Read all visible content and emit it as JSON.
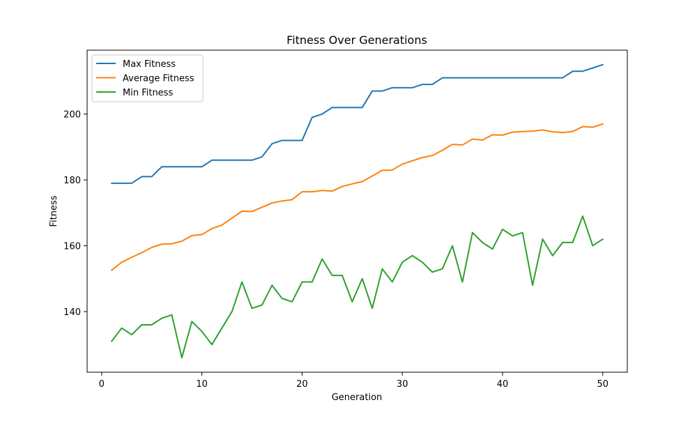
{
  "chart_data": {
    "type": "line",
    "title": "Fitness Over Generations",
    "xlabel": "Generation",
    "ylabel": "Fitness",
    "xlim": [
      -1.45,
      52.45
    ],
    "ylim": [
      121.6,
      219.4
    ],
    "xticks": [
      0,
      10,
      20,
      30,
      40,
      50
    ],
    "yticks": [
      140,
      160,
      180,
      200
    ],
    "grid": false,
    "legend_position": "top-left",
    "x": [
      1,
      2,
      3,
      4,
      5,
      6,
      7,
      8,
      9,
      10,
      11,
      12,
      13,
      14,
      15,
      16,
      17,
      18,
      19,
      20,
      21,
      22,
      23,
      24,
      25,
      26,
      27,
      28,
      29,
      30,
      31,
      32,
      33,
      34,
      35,
      36,
      37,
      38,
      39,
      40,
      41,
      42,
      43,
      44,
      45,
      46,
      47,
      48,
      49,
      50
    ],
    "series": [
      {
        "name": "Max Fitness",
        "color": "#1f77b4",
        "values": [
          179,
          179,
          179,
          181,
          181,
          184,
          184,
          184,
          184,
          184,
          186,
          186,
          186,
          186,
          186,
          187,
          191,
          192,
          192,
          192,
          199,
          200,
          202,
          202,
          202,
          202,
          207,
          207,
          208,
          208,
          208,
          209,
          209,
          211,
          211,
          211,
          211,
          211,
          211,
          211,
          211,
          211,
          211,
          211,
          211,
          211,
          213,
          213,
          214,
          215
        ]
      },
      {
        "name": "Average Fitness",
        "color": "#ff7f0e",
        "values": [
          152.6,
          155,
          156.5,
          157.9,
          159.5,
          160.5,
          160.6,
          161.4,
          163.1,
          163.4,
          165.2,
          166.3,
          168.4,
          170.5,
          170.4,
          171.7,
          173,
          173.6,
          174,
          176.4,
          176.4,
          176.8,
          176.6,
          178,
          178.8,
          179.5,
          181.2,
          182.9,
          183,
          184.8,
          185.8,
          186.8,
          187.4,
          189,
          190.8,
          190.6,
          192.4,
          192.1,
          193.7,
          193.6,
          194.5,
          194.7,
          194.8,
          195.2,
          194.6,
          194.4,
          194.7,
          196.2,
          196,
          197
        ]
      },
      {
        "name": "Min Fitness",
        "color": "#2ca02c",
        "values": [
          131,
          135,
          133,
          136,
          136,
          138,
          139,
          126,
          137,
          134,
          130,
          135,
          140,
          149,
          141,
          142,
          148,
          144,
          143,
          149,
          149,
          156,
          151,
          151,
          143,
          150,
          141,
          153,
          149,
          155,
          157,
          155,
          152,
          153,
          160,
          149,
          164,
          161,
          159,
          165,
          163,
          164,
          148,
          162,
          157,
          161,
          161,
          169,
          160,
          162
        ]
      }
    ]
  }
}
